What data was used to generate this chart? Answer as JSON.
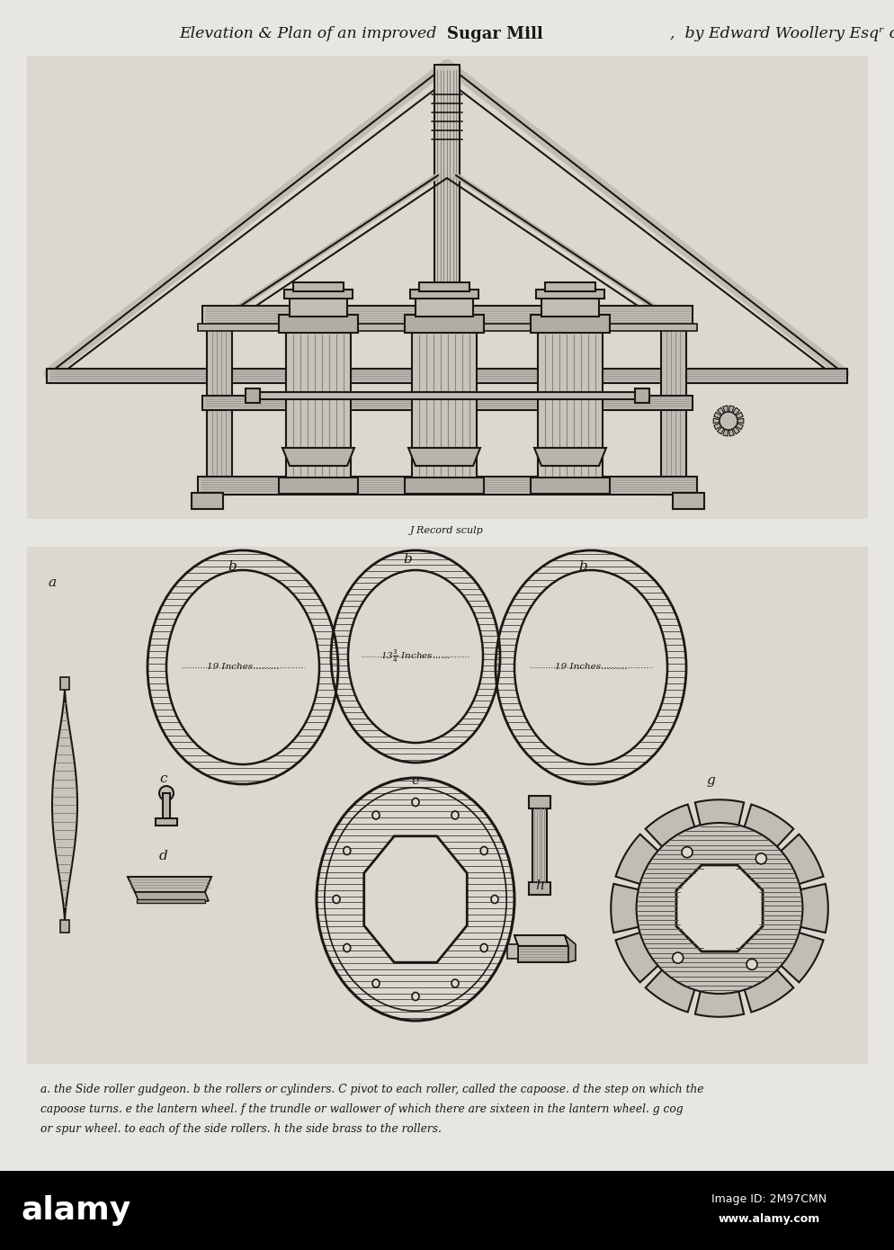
{
  "title_italic": "Elevation & Plan of an improved ",
  "title_bold": "Sugar Mill",
  "title_end": " by Edward Woollery Esqʳ of Jamaica.",
  "caption_sculptor": "J Record sculp",
  "caption_text": "a. the Side roller gudgeon. b the rollers or cylinders. C pivot to each roller, called the capoose. d the step on which the\ncapoose turns. e the lantern wheel. f the trundle or wallower of which there are sixteen in the lantern wheel. g cog\nor spur wheel. to each of the side rollers. h the side brass to the rollers.",
  "bg_color": "#e8e6e0",
  "paper_color": "#dbd8d0",
  "line_color": "#1a1815",
  "text_color": "#1a1815",
  "hatch_color": "#555250",
  "watermark_bg": "#000000",
  "watermark_text_color": "#ffffff",
  "alamy_text": "alamy",
  "image_id_text": "Image ID: 2M97CMN",
  "alamy_url": "www.alamy.com"
}
